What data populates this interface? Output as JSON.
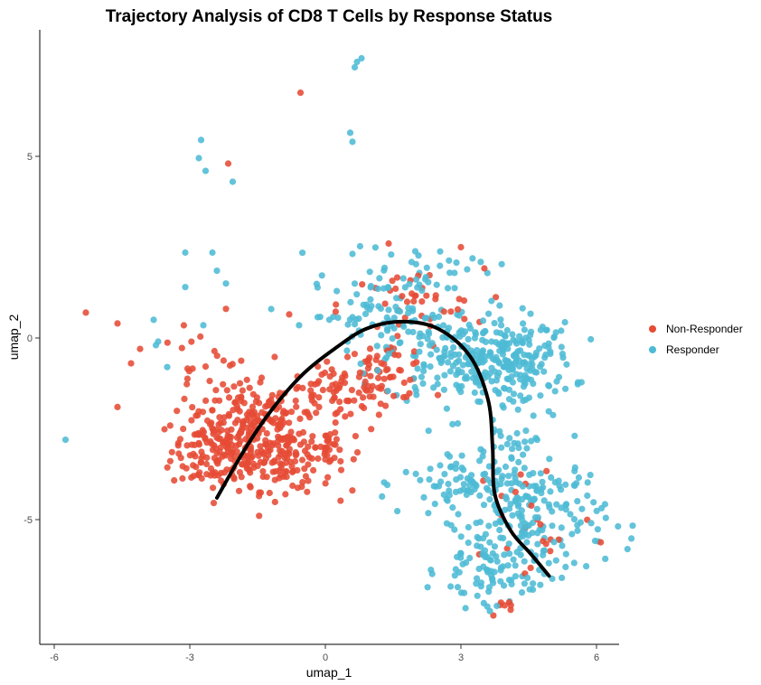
{
  "chart_data": {
    "type": "scatter",
    "title": "Trajectory Analysis of CD8 T Cells by Response Status",
    "xlabel": "umap_1",
    "ylabel": "umap_2",
    "xlim": [
      -6.3,
      6.5
    ],
    "ylim": [
      -8.3,
      8.5
    ],
    "xticks": [
      -6,
      -3,
      0,
      3,
      6
    ],
    "xtick_labels": [
      "-6",
      "-3",
      "0",
      "3",
      "6"
    ],
    "yticks": [
      -5,
      0,
      5
    ],
    "ytick_labels": [
      "-5",
      "0",
      "5"
    ],
    "grid": false,
    "legend_position": "right",
    "series": [
      {
        "name": "Non-Responder",
        "color": "#E64B35",
        "clusters": [
          {
            "center": [
              -2.3,
              -3.1
            ],
            "spread": [
              0.55,
              0.55
            ],
            "n": 170
          },
          {
            "center": [
              -0.9,
              -3.2
            ],
            "spread": [
              0.55,
              0.5
            ],
            "n": 150
          },
          {
            "center": [
              -1.6,
              -2.1
            ],
            "spread": [
              0.6,
              0.45
            ],
            "n": 90
          },
          {
            "center": [
              0.3,
              -1.5
            ],
            "spread": [
              0.6,
              0.4
            ],
            "n": 70
          },
          {
            "center": [
              1.3,
              -0.9
            ],
            "spread": [
              0.5,
              0.4
            ],
            "n": 55
          },
          {
            "center": [
              -2.7,
              -1.0
            ],
            "spread": [
              0.5,
              0.6
            ],
            "n": 25
          },
          {
            "center": [
              1.9,
              0.9
            ],
            "spread": [
              0.8,
              0.5
            ],
            "n": 40
          },
          {
            "center": [
              0.1,
              -3.0
            ],
            "spread": [
              0.35,
              0.35
            ],
            "n": 20
          },
          {
            "center": [
              4.6,
              -5.0
            ],
            "spread": [
              0.7,
              1.0
            ],
            "n": 22
          },
          {
            "center": [
              4.0,
              -7.4
            ],
            "spread": [
              0.2,
              0.15
            ],
            "n": 7
          }
        ],
        "outliers": [
          [
            -5.3,
            0.7
          ],
          [
            -4.6,
            0.4
          ],
          [
            -4.3,
            -0.7
          ],
          [
            -4.6,
            -1.9
          ],
          [
            -4.1,
            -0.3
          ],
          [
            -0.55,
            6.75
          ],
          [
            -2.15,
            4.8
          ],
          [
            -0.8,
            0.65
          ],
          [
            -2.2,
            0.8
          ],
          [
            3.0,
            2.5
          ],
          [
            1.4,
            2.6
          ],
          [
            0.2,
            -3.3
          ]
        ]
      },
      {
        "name": "Responder",
        "color": "#4DBBD5",
        "clusters": [
          {
            "center": [
              3.1,
              -0.5
            ],
            "spread": [
              0.9,
              0.65
            ],
            "n": 220
          },
          {
            "center": [
              4.3,
              -0.7
            ],
            "spread": [
              0.6,
              0.55
            ],
            "n": 110
          },
          {
            "center": [
              1.2,
              0.6
            ],
            "spread": [
              0.8,
              0.5
            ],
            "n": 70
          },
          {
            "center": [
              4.6,
              -4.9
            ],
            "spread": [
              0.8,
              0.85
            ],
            "n": 190
          },
          {
            "center": [
              3.1,
              -4.0
            ],
            "spread": [
              0.7,
              0.6
            ],
            "n": 80
          },
          {
            "center": [
              3.6,
              -6.4
            ],
            "spread": [
              0.55,
              0.5
            ],
            "n": 75
          },
          {
            "center": [
              2.2,
              1.9
            ],
            "spread": [
              0.9,
              0.35
            ],
            "n": 40
          },
          {
            "center": [
              4.3,
              -2.6
            ],
            "spread": [
              0.35,
              0.4
            ],
            "n": 18
          }
        ],
        "outliers": [
          [
            -5.75,
            -2.8
          ],
          [
            -2.8,
            4.95
          ],
          [
            -2.75,
            5.45
          ],
          [
            -2.65,
            4.6
          ],
          [
            -2.05,
            4.3
          ],
          [
            0.55,
            5.65
          ],
          [
            0.6,
            5.4
          ],
          [
            0.65,
            7.45
          ],
          [
            0.8,
            7.7
          ],
          [
            0.7,
            7.6
          ],
          [
            -3.1,
            2.35
          ],
          [
            -2.5,
            2.35
          ],
          [
            -2.4,
            1.85
          ],
          [
            -2.2,
            1.5
          ],
          [
            -3.1,
            1.4
          ],
          [
            -3.8,
            0.5
          ],
          [
            -3.7,
            -0.1
          ],
          [
            -3.5,
            -0.8
          ],
          [
            -2.7,
            0.35
          ],
          [
            -3.75,
            -0.2
          ]
        ]
      }
    ],
    "trajectory": {
      "name": "",
      "color": "#000000",
      "points": [
        [
          -2.4,
          -4.4
        ],
        [
          -1.8,
          -3.1
        ],
        [
          -1.2,
          -2.0
        ],
        [
          -0.5,
          -1.0
        ],
        [
          0.2,
          -0.3
        ],
        [
          0.9,
          0.25
        ],
        [
          1.7,
          0.45
        ],
        [
          2.5,
          0.25
        ],
        [
          3.2,
          -0.5
        ],
        [
          3.6,
          -1.7
        ],
        [
          3.7,
          -3.0
        ],
        [
          3.75,
          -4.3
        ],
        [
          4.1,
          -5.3
        ],
        [
          4.55,
          -5.95
        ],
        [
          4.95,
          -6.55
        ]
      ]
    }
  }
}
